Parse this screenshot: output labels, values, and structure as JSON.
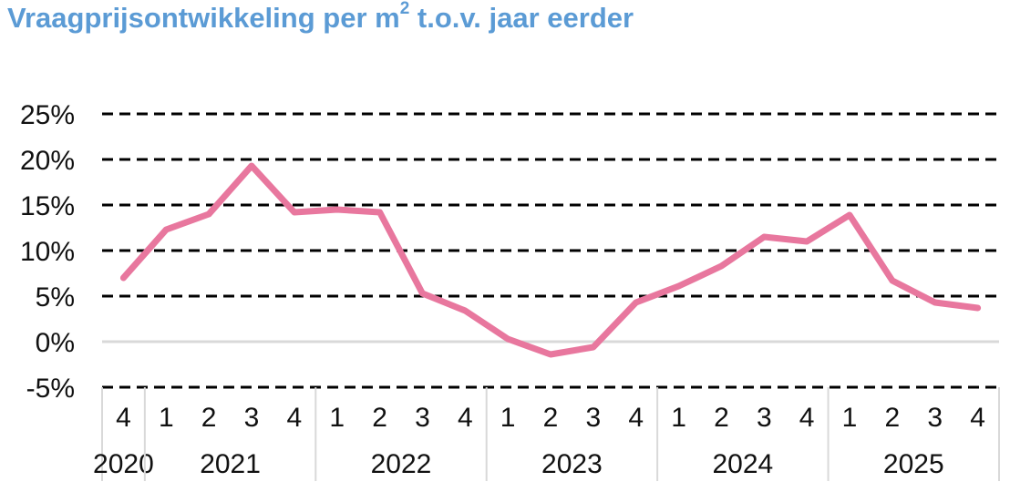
{
  "title": {
    "main": "Vraagprijsontwikkeling per m",
    "sup": "2",
    "rest": " t.o.v. jaar eerder"
  },
  "chart_data": {
    "type": "line",
    "ylim": [
      -5,
      25
    ],
    "yticks": [
      -5,
      0,
      5,
      10,
      15,
      20,
      25
    ],
    "ytick_labels": [
      "-5%",
      "0%",
      "5%",
      "10%",
      "15%",
      "20%",
      "25%"
    ],
    "grid": "dashed horizontal",
    "categories": [
      "4",
      "1",
      "2",
      "3",
      "4",
      "1",
      "2",
      "3",
      "4",
      "1",
      "2",
      "3",
      "4",
      "1",
      "2",
      "3",
      "4",
      "1",
      "2",
      "3",
      "4"
    ],
    "years": [
      {
        "label": "2020",
        "quarters": 1
      },
      {
        "label": "2021",
        "quarters": 4
      },
      {
        "label": "2022",
        "quarters": 4
      },
      {
        "label": "2023",
        "quarters": 4
      },
      {
        "label": "2024",
        "quarters": 4
      },
      {
        "label": "2025",
        "quarters": 4
      }
    ],
    "series": [
      {
        "color": "#e8779e",
        "values": [
          7.0,
          12.3,
          14.0,
          19.3,
          14.2,
          14.5,
          14.2,
          5.3,
          3.4,
          0.3,
          -1.4,
          -0.6,
          4.3,
          6.1,
          8.3,
          11.5,
          11.0,
          13.9,
          6.7,
          4.3,
          3.7
        ]
      }
    ]
  }
}
